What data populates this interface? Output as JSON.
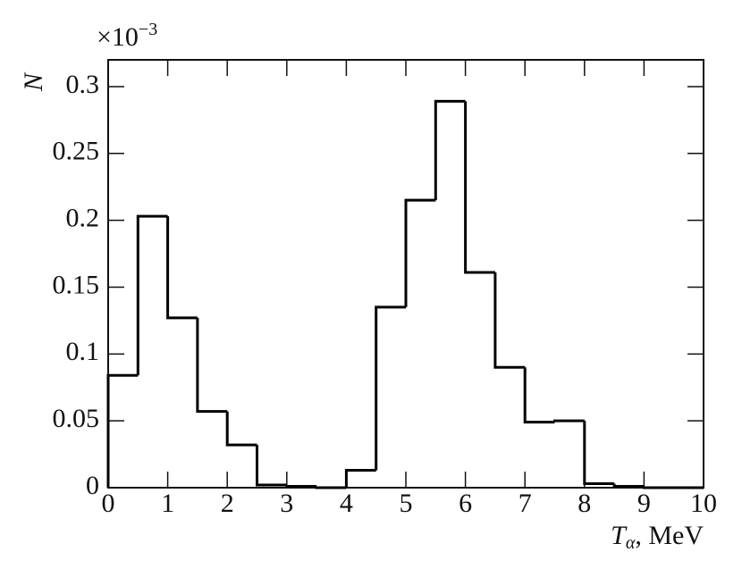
{
  "chart_data": {
    "type": "histogram",
    "xlabel": {
      "symbol": "T",
      "subscript": "α",
      "unit": ", MeV"
    },
    "ylabel": "N",
    "y_multiplier": {
      "base": "×10",
      "exponent": "−3"
    },
    "bins": [
      0,
      0.5,
      1,
      1.5,
      2,
      2.5,
      3,
      3.5,
      4,
      4.5,
      5,
      5.5,
      6,
      6.5,
      7,
      7.5,
      8,
      8.5,
      9,
      9.5,
      10
    ],
    "values": [
      0.084,
      0.203,
      0.127,
      0.057,
      0.032,
      0.002,
      0.001,
      0,
      0.013,
      0.135,
      0.215,
      0.289,
      0.161,
      0.09,
      0.049,
      0.05,
      0.003,
      0.001,
      0,
      0
    ],
    "color": "#000000",
    "xlim": [
      0,
      10
    ],
    "xticks": [
      0,
      1,
      2,
      3,
      4,
      5,
      6,
      7,
      8,
      9,
      10
    ],
    "ylim": [
      0,
      0.32
    ],
    "yticks": [
      0,
      0.05,
      0.1,
      0.15,
      0.2,
      0.25,
      0.3
    ],
    "grid": false
  }
}
